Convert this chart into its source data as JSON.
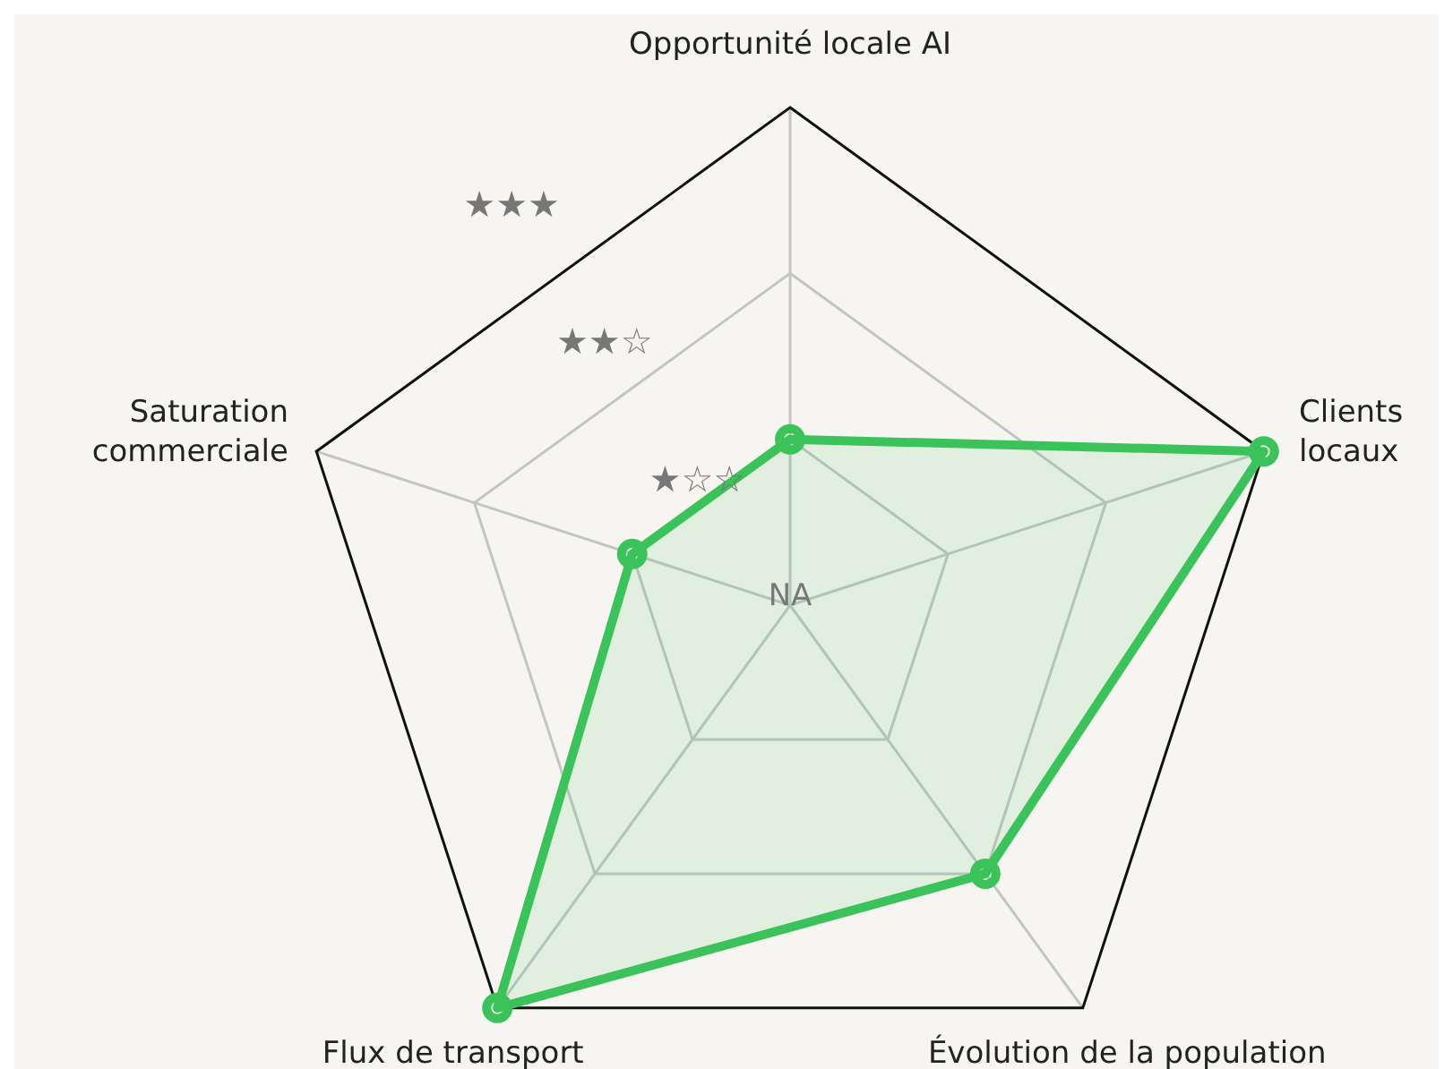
{
  "chart_data": {
    "type": "radar",
    "categories": [
      "Opportunité locale AI",
      "Clients locaux",
      "Évolution de la population",
      "Flux de transport",
      "Saturation commerciale"
    ],
    "series": [
      {
        "color": "#3cc25a",
        "values": [
          1,
          3,
          2,
          3,
          1
        ]
      }
    ],
    "ylim": [
      0,
      3
    ],
    "yticks": [
      {
        "value": 0,
        "label": "NA"
      },
      {
        "value": 1,
        "label": "★☆☆"
      },
      {
        "value": 2,
        "label": "★★☆"
      },
      {
        "value": 3,
        "label": "★★★"
      }
    ],
    "grid": true,
    "marker": "circle"
  }
}
